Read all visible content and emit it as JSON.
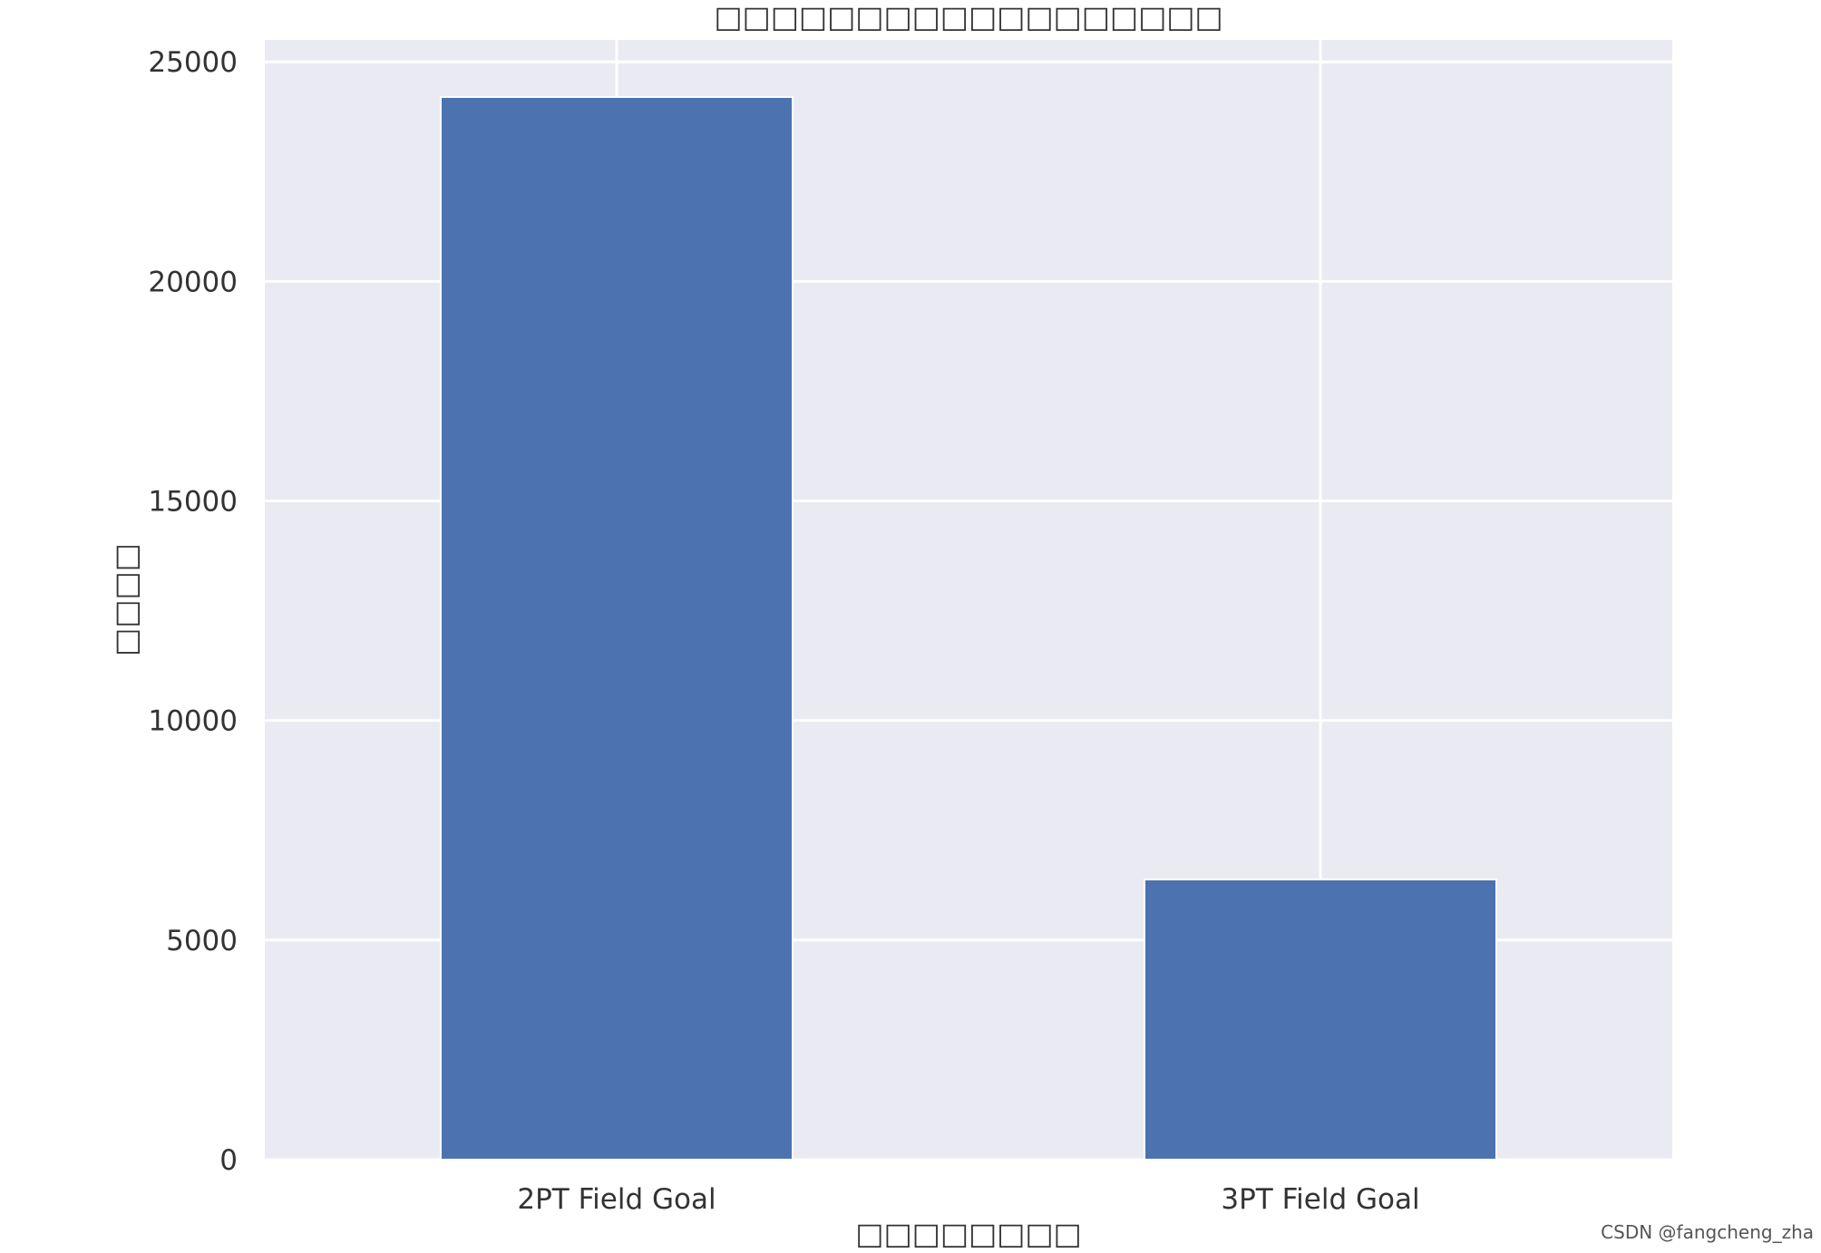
{
  "chart_data": {
    "type": "bar",
    "title": "□□□□□□□□□□□□□□□□□□",
    "xlabel": "□□□□□□□□",
    "ylabel": "□□□□",
    "categories": [
      "2PT Field Goal",
      "3PT Field Goal"
    ],
    "values": [
      24200,
      6380
    ],
    "ylim": [
      0,
      25500
    ],
    "yticks": [
      0,
      5000,
      10000,
      15000,
      20000,
      25000
    ],
    "grid": true,
    "legend": "none",
    "colors": {
      "bar": "#4c72b0",
      "plot_background": "#eaeaf2",
      "grid": "#ffffff"
    }
  },
  "watermark": "CSDN @fangcheng_zha"
}
